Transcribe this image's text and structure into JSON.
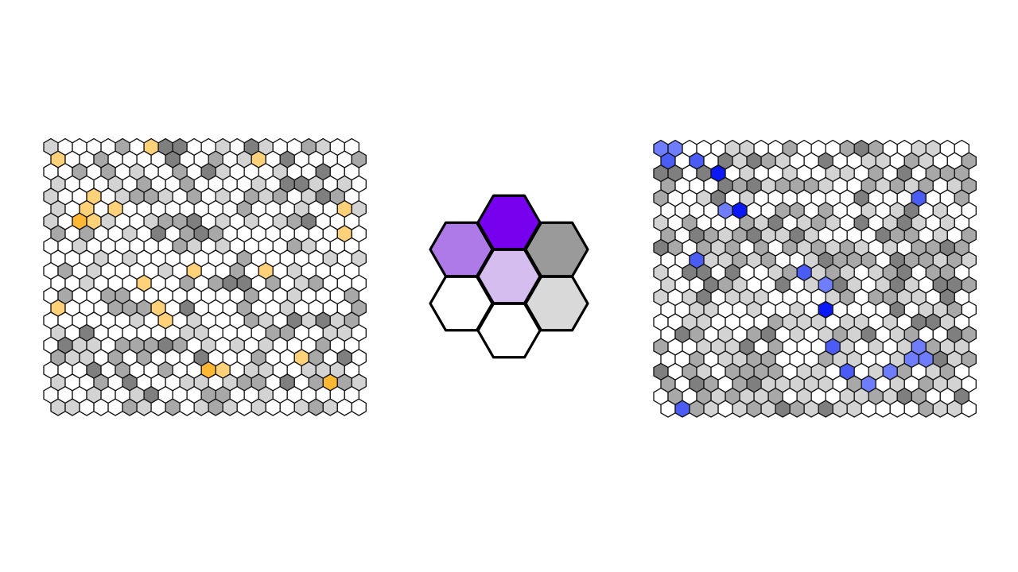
{
  "palette": {
    "white": "#ffffff",
    "light_gray": "#d3d3d3",
    "mid_gray": "#a8a8a8",
    "dark_gray": "#7f7f7f",
    "yellow_light": "#ffd27a",
    "yellow": "#ffb833",
    "blue_light": "#6f7dfb",
    "blue_mid": "#4a5cf4",
    "blue_dark": "#0a19f5",
    "purple_dark": "#7700ee",
    "purple_mid": "#ad7ae8",
    "purple_light": "#d5bdf0",
    "legend_gray_dark": "#9a9a9a",
    "legend_gray_light": "#d9d9d9",
    "outline": "#111111"
  },
  "left_grid": {
    "cols": 22,
    "rows": 22,
    "base_color": "white",
    "shades": [
      "light_gray",
      "mid_gray",
      "dark_gray"
    ],
    "shade_density": 0.42,
    "highlight_cells": [
      {
        "row": 0,
        "col": 7,
        "color": "yellow_light"
      },
      {
        "row": 1,
        "col": 0,
        "color": "yellow_light"
      },
      {
        "row": 1,
        "col": 14,
        "color": "yellow_light"
      },
      {
        "row": 4,
        "col": 3,
        "color": "yellow_light"
      },
      {
        "row": 5,
        "col": 2,
        "color": "yellow_light"
      },
      {
        "row": 5,
        "col": 4,
        "color": "yellow_light"
      },
      {
        "row": 5,
        "col": 20,
        "color": "yellow_light"
      },
      {
        "row": 6,
        "col": 2,
        "color": "yellow"
      },
      {
        "row": 6,
        "col": 3,
        "color": "yellow_light"
      },
      {
        "row": 7,
        "col": 20,
        "color": "yellow_light"
      },
      {
        "row": 10,
        "col": 10,
        "color": "yellow_light"
      },
      {
        "row": 10,
        "col": 15,
        "color": "yellow_light"
      },
      {
        "row": 11,
        "col": 6,
        "color": "yellow_light"
      },
      {
        "row": 13,
        "col": 0,
        "color": "yellow_light"
      },
      {
        "row": 13,
        "col": 7,
        "color": "yellow_light"
      },
      {
        "row": 14,
        "col": 8,
        "color": "yellow_light"
      },
      {
        "row": 17,
        "col": 17,
        "color": "yellow_light"
      },
      {
        "row": 18,
        "col": 11,
        "color": "yellow"
      },
      {
        "row": 18,
        "col": 12,
        "color": "yellow_light"
      },
      {
        "row": 19,
        "col": 19,
        "color": "yellow"
      }
    ]
  },
  "center_legend": {
    "cells": [
      {
        "name": "legend-hex-top",
        "color": "purple_dark"
      },
      {
        "name": "legend-hex-upper-left",
        "color": "purple_mid"
      },
      {
        "name": "legend-hex-center",
        "color": "purple_light"
      },
      {
        "name": "legend-hex-upper-right",
        "color": "legend_gray_dark"
      },
      {
        "name": "legend-hex-lower-left",
        "color": "white"
      },
      {
        "name": "legend-hex-bottom",
        "color": "white"
      },
      {
        "name": "legend-hex-lower-right",
        "color": "legend_gray_light"
      }
    ]
  },
  "right_grid": {
    "cols": 22,
    "rows": 22,
    "base_color": "white",
    "shades": [
      "light_gray",
      "mid_gray",
      "dark_gray"
    ],
    "shade_density": 0.62,
    "highlight_cells": [
      {
        "row": 0,
        "col": 0,
        "color": "blue_light"
      },
      {
        "row": 0,
        "col": 1,
        "color": "blue_light"
      },
      {
        "row": 1,
        "col": 0,
        "color": "blue_mid"
      },
      {
        "row": 1,
        "col": 2,
        "color": "blue_mid"
      },
      {
        "row": 2,
        "col": 4,
        "color": "blue_dark"
      },
      {
        "row": 4,
        "col": 18,
        "color": "blue_mid"
      },
      {
        "row": 5,
        "col": 4,
        "color": "blue_light"
      },
      {
        "row": 5,
        "col": 5,
        "color": "blue_dark"
      },
      {
        "row": 9,
        "col": 2,
        "color": "blue_mid"
      },
      {
        "row": 10,
        "col": 10,
        "color": "blue_mid"
      },
      {
        "row": 11,
        "col": 11,
        "color": "blue_light"
      },
      {
        "row": 13,
        "col": 11,
        "color": "blue_dark"
      },
      {
        "row": 16,
        "col": 12,
        "color": "blue_mid"
      },
      {
        "row": 16,
        "col": 18,
        "color": "blue_light"
      },
      {
        "row": 17,
        "col": 17,
        "color": "blue_light"
      },
      {
        "row": 17,
        "col": 18,
        "color": "blue_light"
      },
      {
        "row": 18,
        "col": 13,
        "color": "blue_mid"
      },
      {
        "row": 18,
        "col": 16,
        "color": "blue_light"
      },
      {
        "row": 19,
        "col": 14,
        "color": "blue_light"
      },
      {
        "row": 21,
        "col": 1,
        "color": "blue_mid"
      }
    ]
  }
}
